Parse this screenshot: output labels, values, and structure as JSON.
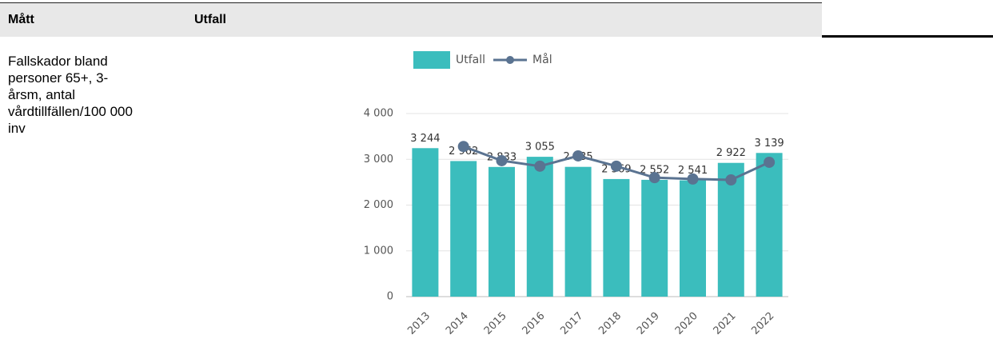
{
  "table": {
    "header": [
      "Mått",
      "Utfall"
    ],
    "rows": [
      [
        "Fallskador bland personer 65+, 3-årsm, antal vårdtillfällen/100 000 inv"
      ]
    ]
  },
  "chart_data": {
    "type": "bar",
    "categories": [
      "2013",
      "2014",
      "2015",
      "2016",
      "2017",
      "2018",
      "2019",
      "2020",
      "2021",
      "2022"
    ],
    "series": [
      {
        "name": "Utfall",
        "type": "bar",
        "color": "#3bbdbd",
        "values": [
          3244,
          2962,
          2833,
          3055,
          2835,
          2569,
          2552,
          2541,
          2922,
          3139
        ],
        "value_labels": [
          "3 244",
          "2 962",
          "2 833",
          "3 055",
          "2 835",
          "2 569",
          "2 552",
          "2 541",
          "2 922",
          "3 139"
        ]
      },
      {
        "name": "Mål",
        "type": "line",
        "color": "#5a7391",
        "values": [
          null,
          3280,
          2970,
          2850,
          3075,
          2850,
          2600,
          2570,
          2550,
          2935
        ]
      }
    ],
    "ylim": [
      0,
      4000
    ],
    "yticks": [
      0,
      {
        "value": 1000,
        "label": "1 000"
      },
      {
        "value": 2000,
        "label": "2 000"
      },
      {
        "value": 3000,
        "label": "3 000"
      },
      {
        "value": 4000,
        "label": "4 000"
      }
    ],
    "grid": true,
    "legend": "top"
  }
}
